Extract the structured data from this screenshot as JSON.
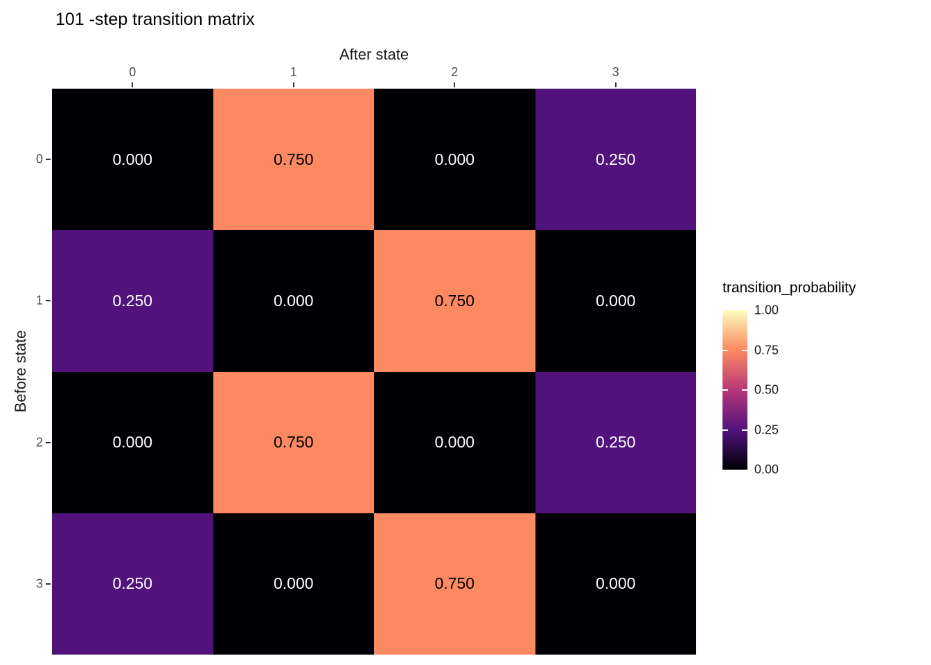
{
  "title": "101 -step transition matrix",
  "chart_data": {
    "type": "heatmap",
    "title": "101 -step transition matrix",
    "xlabel": "After state",
    "ylabel": "Before state",
    "x_ticks": [
      "0",
      "1",
      "2",
      "3"
    ],
    "y_ticks": [
      "0",
      "1",
      "2",
      "3"
    ],
    "matrix": [
      [
        0,
        0.75,
        0,
        0.25
      ],
      [
        0.25,
        0,
        0.75,
        0
      ],
      [
        0,
        0.75,
        0,
        0.25
      ],
      [
        0.25,
        0,
        0.75,
        0
      ]
    ],
    "cell_labels": [
      [
        "0.000",
        "0.750",
        "0.000",
        "0.250"
      ],
      [
        "0.250",
        "0.000",
        "0.750",
        "0.000"
      ],
      [
        "0.000",
        "0.750",
        "0.000",
        "0.250"
      ],
      [
        "0.250",
        "0.000",
        "0.750",
        "0.000"
      ]
    ],
    "value_colors": {
      "0": {
        "bg": "#000004",
        "text": "#FFFFFF"
      },
      "0.25": {
        "bg": "#51127C",
        "text": "#FFFFFF"
      },
      "0.75": {
        "bg": "#FC8961",
        "text": "#000000"
      }
    },
    "grid": false,
    "legend": {
      "title": "transition_probability",
      "position": "right",
      "range": [
        0,
        1
      ],
      "ticks": [
        "1.00",
        "0.75",
        "0.50",
        "0.25",
        "0.00"
      ],
      "gradient_stops": [
        {
          "value": 0,
          "color": "#000004"
        },
        {
          "value": 0.25,
          "color": "#51127C"
        },
        {
          "value": 0.5,
          "color": "#B73779"
        },
        {
          "value": 0.75,
          "color": "#FC8961"
        },
        {
          "value": 1,
          "color": "#FCFDBF"
        }
      ]
    },
    "colors": {
      "background": "#FFFFFF",
      "axis_text": "#4D4D4D",
      "tick_mark": "#333333"
    }
  }
}
